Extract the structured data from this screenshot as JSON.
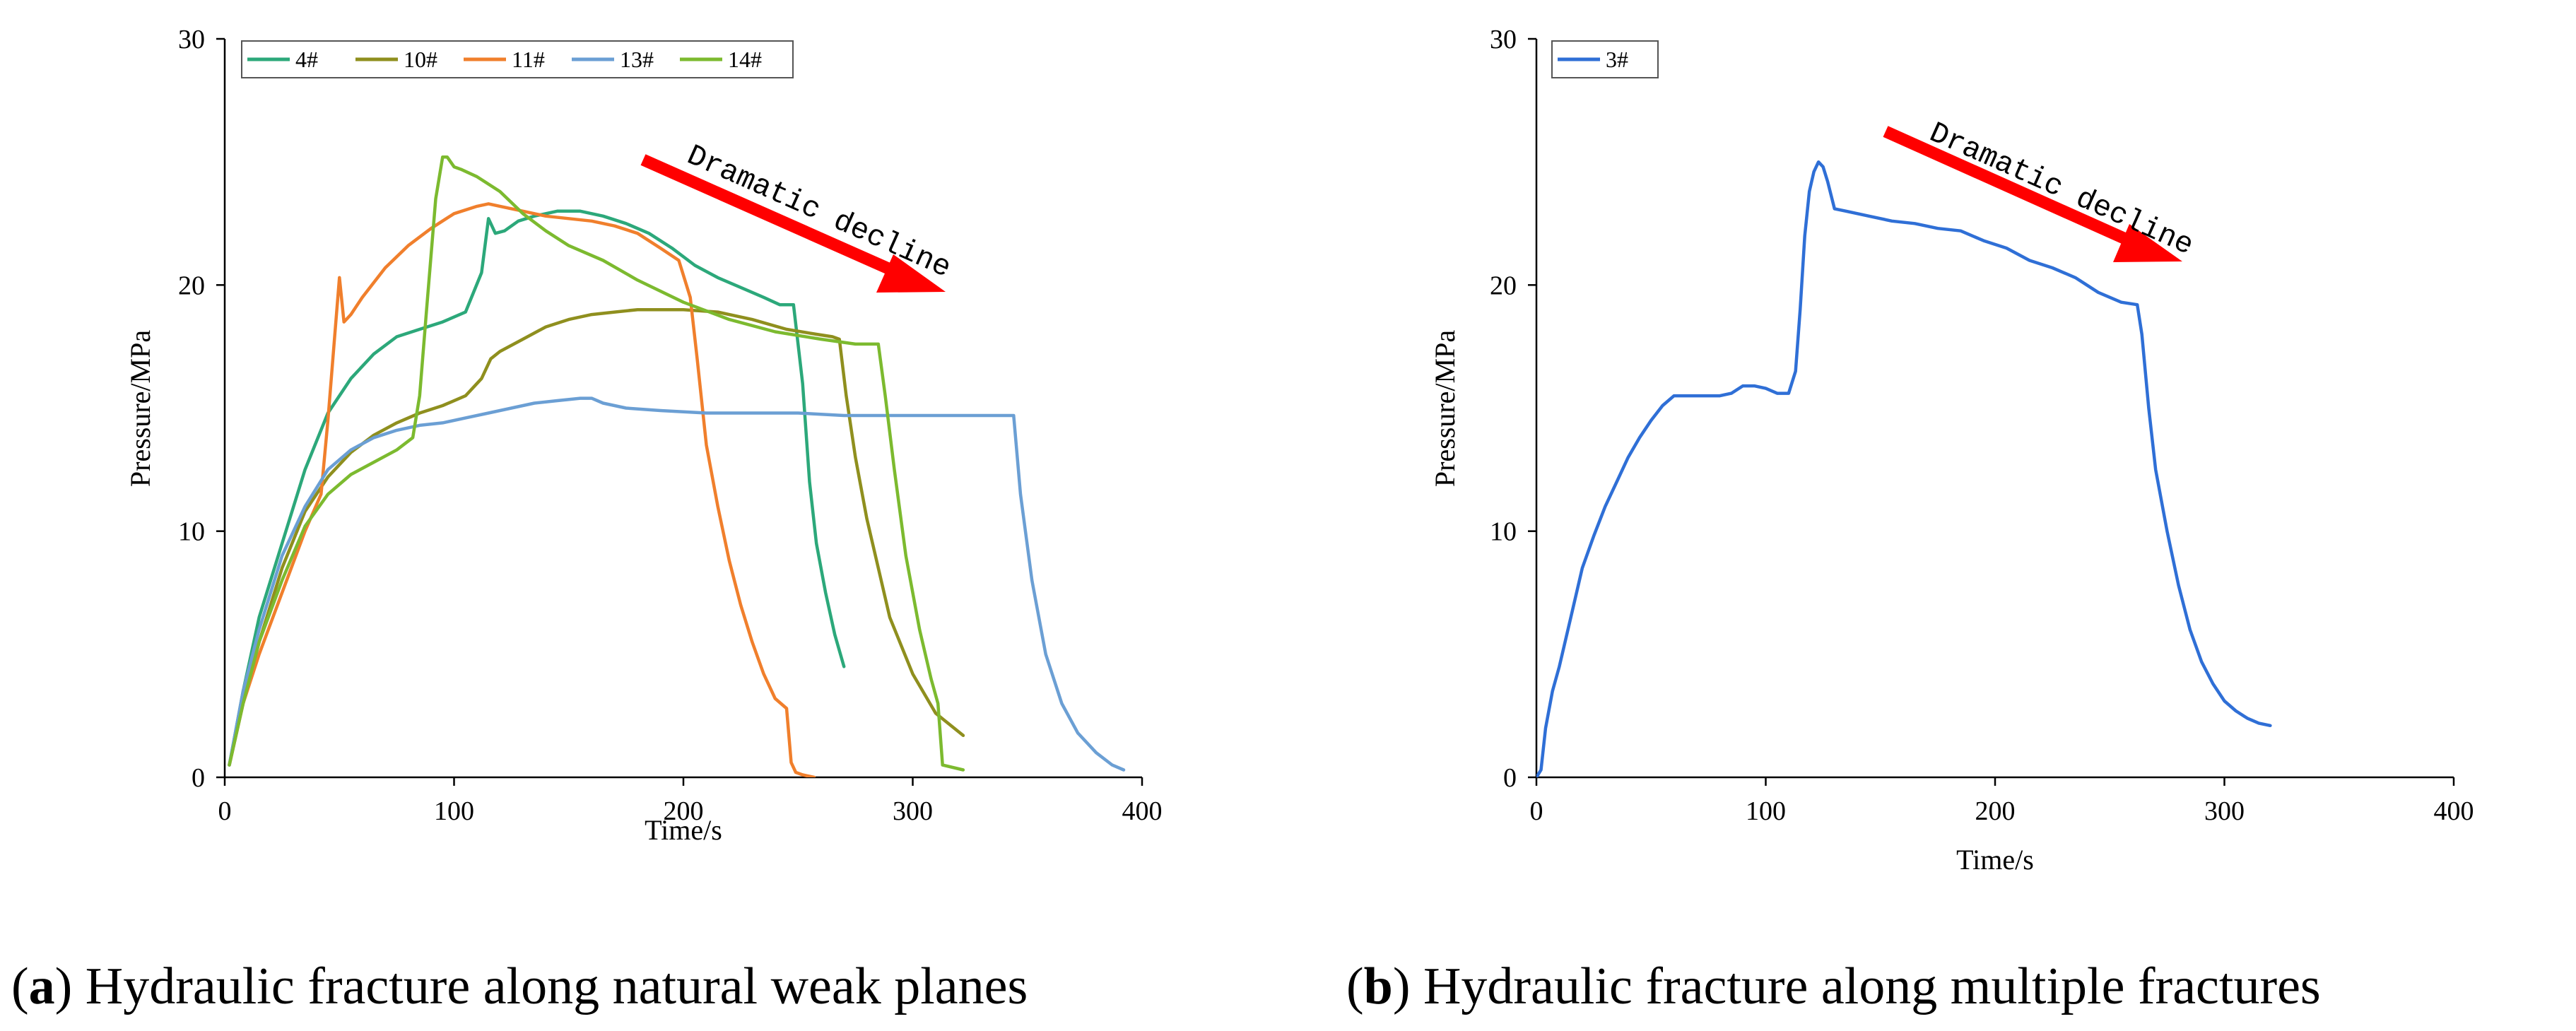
{
  "chart_data": [
    {
      "id": "a",
      "type": "line",
      "xlabel": "Time/s",
      "ylabel": "Pressure/MPa",
      "xlim": [
        0,
        400
      ],
      "ylim": [
        0,
        30
      ],
      "xticks": [
        "0",
        "100",
        "200",
        "300",
        "400"
      ],
      "yticks": [
        "0",
        "10",
        "20",
        "30"
      ],
      "legend_position": "top-left",
      "annotation": "Dramatic decline",
      "caption_letter": "a",
      "caption_text": ") Hydraulic fracture along natural weak planes",
      "series": [
        {
          "name": "4#",
          "color": "#2ca87a",
          "x": [
            2,
            8,
            15,
            25,
            35,
            45,
            55,
            65,
            75,
            85,
            95,
            105,
            112,
            115,
            118,
            122,
            128,
            135,
            145,
            155,
            165,
            175,
            185,
            195,
            205,
            215,
            225,
            235,
            242,
            248,
            252,
            255,
            258,
            262,
            266,
            270
          ],
          "y": [
            0.5,
            3.5,
            6.5,
            9.5,
            12.5,
            14.8,
            16.2,
            17.2,
            17.9,
            18.2,
            18.5,
            18.9,
            20.5,
            22.7,
            22.1,
            22.2,
            22.6,
            22.8,
            23.0,
            23.0,
            22.8,
            22.5,
            22.1,
            21.5,
            20.8,
            20.3,
            19.9,
            19.5,
            19.2,
            19.2,
            16.0,
            12.0,
            9.5,
            7.5,
            5.8,
            4.5
          ]
        },
        {
          "name": "10#",
          "color": "#8f8f1e",
          "x": [
            2,
            8,
            15,
            25,
            35,
            45,
            55,
            65,
            75,
            85,
            95,
            105,
            112,
            116,
            120,
            130,
            140,
            150,
            160,
            170,
            180,
            190,
            200,
            215,
            230,
            245,
            258,
            265,
            268,
            271,
            275,
            280,
            285,
            290,
            300,
            310,
            322
          ],
          "y": [
            0.5,
            3.0,
            5.5,
            8.5,
            10.8,
            12.2,
            13.2,
            13.9,
            14.4,
            14.8,
            15.1,
            15.5,
            16.2,
            17.0,
            17.3,
            17.8,
            18.3,
            18.6,
            18.8,
            18.9,
            19.0,
            19.0,
            19.0,
            18.9,
            18.6,
            18.2,
            18.0,
            17.9,
            17.8,
            15.5,
            13.0,
            10.5,
            8.5,
            6.5,
            4.2,
            2.6,
            1.7
          ]
        },
        {
          "name": "11#",
          "color": "#f07f2c",
          "x": [
            2,
            8,
            15,
            25,
            35,
            42,
            45,
            48,
            50,
            52,
            55,
            60,
            70,
            80,
            90,
            100,
            110,
            115,
            120,
            130,
            140,
            150,
            160,
            170,
            180,
            190,
            198,
            203,
            206,
            210,
            215,
            220,
            225,
            230,
            235,
            240,
            245,
            247,
            249,
            252,
            257
          ],
          "y": [
            0.5,
            3.0,
            5.0,
            7.5,
            10.0,
            11.5,
            14.5,
            18.0,
            20.3,
            18.5,
            18.8,
            19.5,
            20.7,
            21.6,
            22.3,
            22.9,
            23.2,
            23.3,
            23.2,
            23.0,
            22.8,
            22.7,
            22.6,
            22.4,
            22.1,
            21.5,
            21.0,
            19.5,
            17.0,
            13.5,
            11.0,
            8.8,
            7.0,
            5.5,
            4.2,
            3.2,
            2.8,
            0.6,
            0.2,
            0.1,
            0.0
          ]
        },
        {
          "name": "13#",
          "color": "#6b9fd4",
          "x": [
            2,
            8,
            15,
            25,
            35,
            45,
            55,
            65,
            75,
            85,
            95,
            105,
            115,
            125,
            135,
            145,
            155,
            160,
            165,
            175,
            190,
            210,
            230,
            250,
            270,
            290,
            310,
            330,
            344,
            347,
            352,
            358,
            365,
            372,
            380,
            387,
            392
          ],
          "y": [
            0.5,
            3.5,
            6.0,
            9.0,
            11.0,
            12.5,
            13.3,
            13.8,
            14.1,
            14.3,
            14.4,
            14.6,
            14.8,
            15.0,
            15.2,
            15.3,
            15.4,
            15.4,
            15.2,
            15.0,
            14.9,
            14.8,
            14.8,
            14.8,
            14.7,
            14.7,
            14.7,
            14.7,
            14.7,
            11.5,
            8.0,
            5.0,
            3.0,
            1.8,
            1.0,
            0.5,
            0.3
          ]
        },
        {
          "name": "14#",
          "color": "#7cba2f",
          "x": [
            2,
            8,
            15,
            25,
            35,
            45,
            55,
            65,
            75,
            82,
            85,
            88,
            92,
            95,
            97,
            100,
            103,
            110,
            120,
            130,
            140,
            150,
            165,
            180,
            200,
            220,
            240,
            260,
            275,
            285,
            288,
            292,
            297,
            303,
            308,
            311,
            313,
            322
          ],
          "y": [
            0.5,
            3.0,
            5.5,
            8.0,
            10.2,
            11.5,
            12.3,
            12.8,
            13.3,
            13.8,
            15.5,
            19.0,
            23.5,
            25.2,
            25.2,
            24.8,
            24.7,
            24.4,
            23.8,
            22.9,
            22.2,
            21.6,
            21.0,
            20.2,
            19.3,
            18.6,
            18.1,
            17.8,
            17.6,
            17.6,
            15.5,
            12.5,
            9.0,
            6.0,
            4.0,
            3.0,
            0.5,
            0.3
          ]
        }
      ]
    },
    {
      "id": "b",
      "type": "line",
      "xlabel": "Time/s",
      "ylabel": "Pressure/MPa",
      "xlim": [
        0,
        400
      ],
      "ylim": [
        0,
        30
      ],
      "xticks": [
        "0",
        "100",
        "200",
        "300",
        "400"
      ],
      "yticks": [
        "0",
        "10",
        "20",
        "30"
      ],
      "legend_position": "top-left",
      "annotation": "Dramatic decline",
      "caption_letter": "b",
      "caption_text": ") Hydraulic fracture along multiple fractures",
      "series": [
        {
          "name": "3#",
          "color": "#2f6fd6",
          "x": [
            0,
            2,
            4,
            7,
            10,
            15,
            20,
            25,
            30,
            35,
            40,
            45,
            50,
            55,
            60,
            65,
            70,
            75,
            80,
            85,
            90,
            95,
            100,
            105,
            110,
            113,
            115,
            117,
            119,
            121,
            123,
            125,
            127,
            130,
            135,
            145,
            155,
            165,
            175,
            185,
            195,
            205,
            215,
            225,
            235,
            245,
            255,
            262,
            264,
            267,
            270,
            275,
            280,
            285,
            290,
            295,
            300,
            305,
            310,
            315,
            320
          ],
          "y": [
            0.0,
            0.3,
            2.0,
            3.5,
            4.5,
            6.5,
            8.5,
            9.8,
            11.0,
            12.0,
            13.0,
            13.8,
            14.5,
            15.1,
            15.5,
            15.5,
            15.5,
            15.5,
            15.5,
            15.6,
            15.9,
            15.9,
            15.8,
            15.6,
            15.6,
            16.5,
            19.0,
            22.0,
            23.8,
            24.6,
            25.0,
            24.8,
            24.2,
            23.1,
            23.0,
            22.8,
            22.6,
            22.5,
            22.3,
            22.2,
            21.8,
            21.5,
            21.0,
            20.7,
            20.3,
            19.7,
            19.3,
            19.2,
            18.0,
            15.0,
            12.5,
            10.0,
            7.8,
            6.0,
            4.7,
            3.8,
            3.1,
            2.7,
            2.4,
            2.2,
            2.1
          ]
        }
      ]
    }
  ]
}
